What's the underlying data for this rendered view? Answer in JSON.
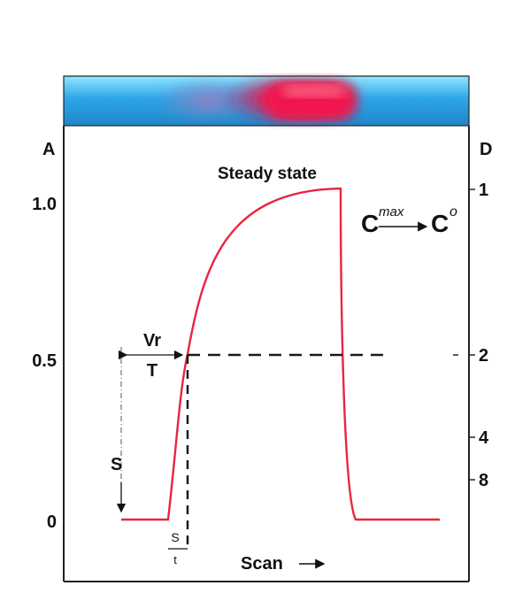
{
  "axes": {
    "left_title": "A",
    "right_title": "D",
    "left_ticks": [
      "1.0",
      "0.5",
      "0"
    ],
    "right_ticks": [
      "1",
      "2",
      "4",
      "8"
    ]
  },
  "annotations": {
    "steady_state": "Steady state",
    "conc_c1": "C",
    "conc_sup1": "max",
    "conc_c2": "C",
    "conc_sup2": "o",
    "vr": "Vr",
    "t_big": "T",
    "s_left": "S",
    "s_small": "S",
    "t_small": "t",
    "scan": "Scan"
  },
  "colors": {
    "curve": "#e8263f",
    "band_blue": "#2ea6e8",
    "band_red": "#f0194d",
    "frame": "#222222",
    "dashed": "#1a1a1a"
  }
}
